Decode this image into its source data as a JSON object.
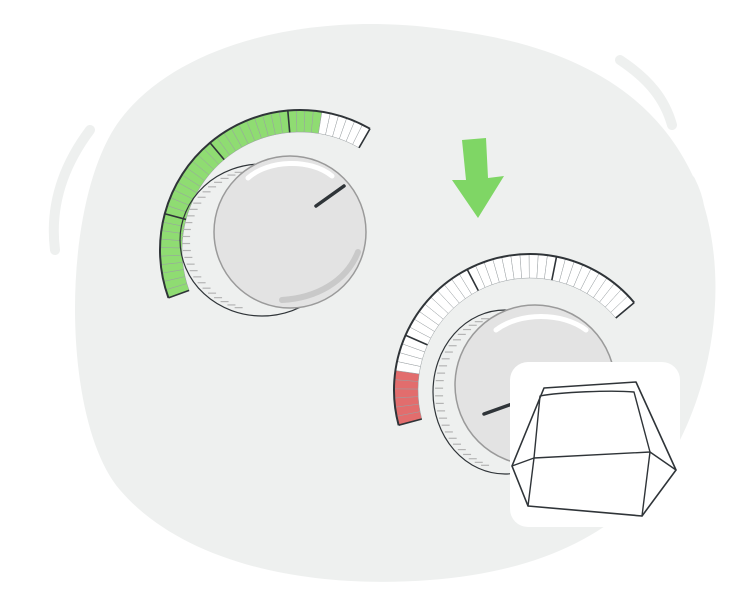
{
  "illustration": {
    "colors": {
      "background_blob": "#eef0ef",
      "outline": "#2f3438",
      "knob_body": "#e3e3e3",
      "knob_side": "#d2d2d2",
      "knob_shadow": "#c9c9c9",
      "scale_active_high": "#8fdc72",
      "scale_active_low": "#e26d6d",
      "scale_inactive": "#ffffff",
      "arrow": "#7fd665",
      "key_cap": "#c8d5df",
      "key_panel": "#ffffff"
    },
    "knob_high": {
      "level": 0.85,
      "scale_color": "green"
    },
    "knob_low": {
      "level": 0.15,
      "scale_color": "red"
    },
    "arrow_direction": "down",
    "icons": [
      "volume-knob-icon",
      "down-arrow-icon",
      "keyboard-key-icon"
    ]
  }
}
